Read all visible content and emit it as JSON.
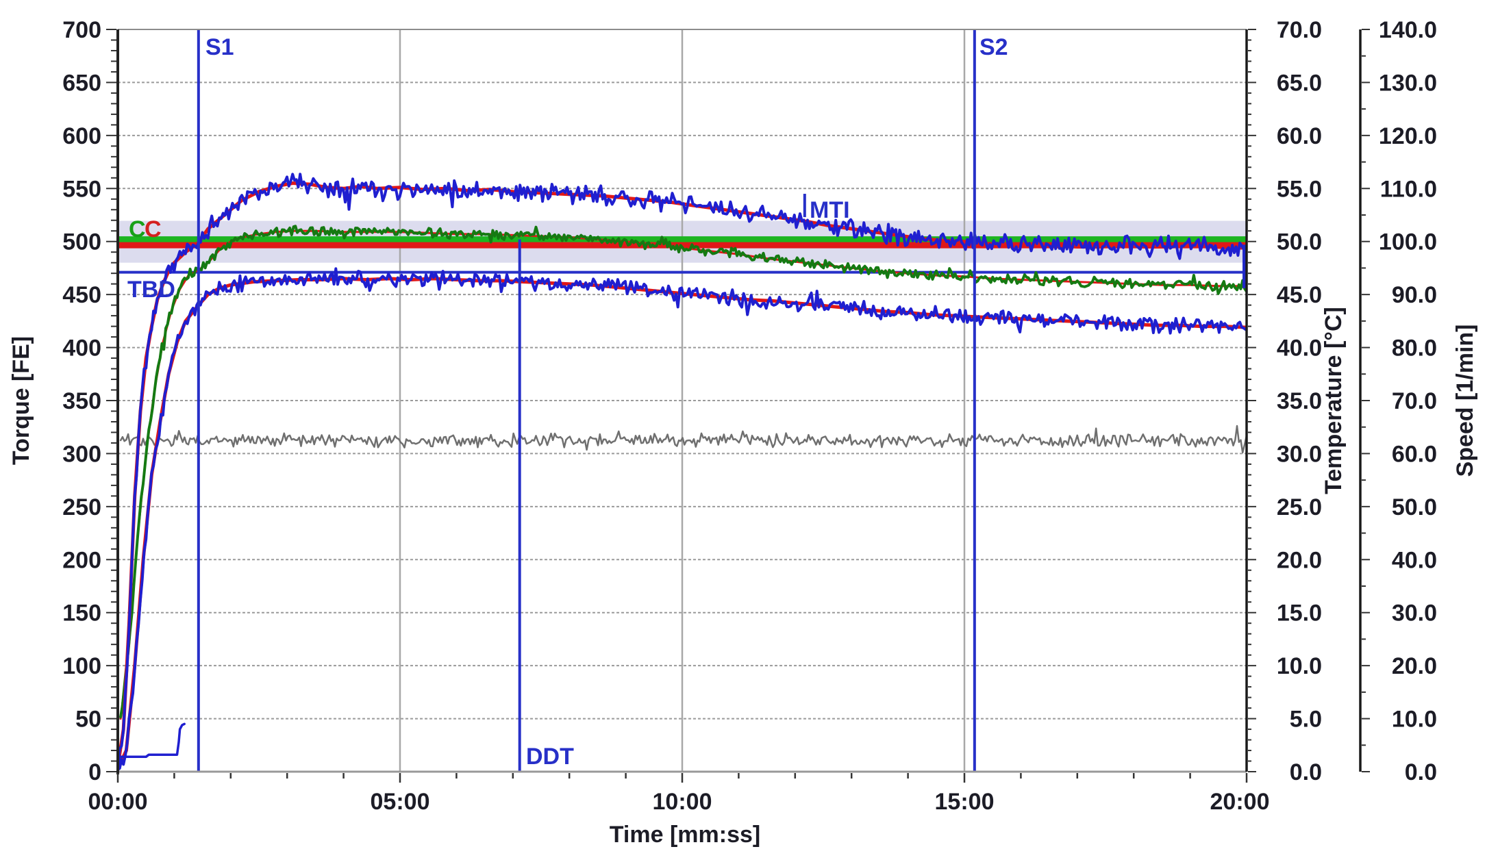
{
  "figure": {
    "background": "#ffffff"
  },
  "chart_data": {
    "type": "line",
    "title": "",
    "grid": "on",
    "x_axis": {
      "label": "Time [mm:ss]",
      "min_label": "00:00",
      "max_label": "20:00",
      "tick_labels": [
        "00:00",
        "05:00",
        "10:00",
        "15:00",
        "20:00"
      ],
      "minor_tick_every_minutes": 1
    },
    "y_axes": [
      {
        "key": "torque",
        "label": "Torque [FE]",
        "side": "left",
        "min": 0,
        "max": 700,
        "step": 50,
        "tick_labels": [
          "0",
          "50",
          "100",
          "150",
          "200",
          "250",
          "300",
          "350",
          "400",
          "450",
          "500",
          "550",
          "600",
          "650",
          "700"
        ]
      },
      {
        "key": "temperature",
        "label": "Temperature [°C]",
        "side": "right",
        "min": 0,
        "max": 70,
        "step": 5,
        "tick_labels": [
          "0.0",
          "5.0",
          "10.0",
          "15.0",
          "20.0",
          "25.0",
          "30.0",
          "35.0",
          "40.0",
          "45.0",
          "50.0",
          "55.0",
          "60.0",
          "65.0",
          "70.0"
        ]
      },
      {
        "key": "speed",
        "label": "Speed [1/min]",
        "side": "right",
        "min": 0,
        "max": 140,
        "step": 10,
        "tick_labels": [
          "0.0",
          "10.0",
          "20.0",
          "30.0",
          "40.0",
          "50.0",
          "60.0",
          "70.0",
          "80.0",
          "90.0",
          "100.0",
          "110.0",
          "120.0",
          "130.0",
          "140.0"
        ]
      }
    ],
    "tolerance_band": {
      "name": "set-point-tolerance-band",
      "from_torque": 480,
      "to_torque": 519.5,
      "color": "#dcdcee"
    },
    "reference_lines": [
      {
        "name": "set-line-green",
        "label": "C",
        "value_torque": 502,
        "color": "#1db521",
        "width": 9
      },
      {
        "name": "set-line-red",
        "label": "C",
        "value_torque": 496.5,
        "color": "#e01818",
        "width": 9
      },
      {
        "name": "TBD-line",
        "label": "TBD",
        "value_torque": 471,
        "color": "#2730c8",
        "width": 4
      }
    ],
    "markers": [
      {
        "name": "S1",
        "label": "S1",
        "time": "01:26",
        "t_min": 1.43,
        "type": "vline-full",
        "color": "#2730c8"
      },
      {
        "name": "S2",
        "label": "S2",
        "time": "15:11",
        "t_min": 15.18,
        "type": "vline-full",
        "color": "#2730c8"
      },
      {
        "name": "DDT",
        "label": "DDT",
        "time": "07:07",
        "t_min": 7.12,
        "type": "vline-partial",
        "v_from": 0,
        "v_to": 502,
        "color": "#2730c8"
      },
      {
        "name": "MTI",
        "label": "MTI",
        "time": "12:10",
        "t_min": 12.17,
        "type": "tick",
        "v_from": 523,
        "v_to": 545,
        "color": "#2730c8"
      },
      {
        "name": "end-of-test",
        "label": "",
        "time": "20:00",
        "t_min": 19.97,
        "type": "bar",
        "v_from": 456,
        "v_to": 497,
        "width": 7,
        "color": "#2028c8"
      }
    ],
    "series": [
      {
        "name": "speed",
        "unit": "1/min",
        "axis": "speed",
        "color": "#6f6f6f",
        "width": 2.5,
        "noise": 0.85,
        "seed": 44,
        "points": [
          [
            0.05,
            62.5
          ],
          [
            20,
            62.5
          ]
        ]
      },
      {
        "name": "temperature-mean",
        "unit": "°C",
        "axis": "temperature",
        "color": "#e01818",
        "width": 3,
        "noise": 0,
        "points_ref": "temperature"
      },
      {
        "name": "temperature",
        "unit": "°C",
        "axis": "temperature",
        "color": "#157a12",
        "width": 4,
        "noise": 0.32,
        "seed": 33,
        "points": [
          [
            0.05,
            5
          ],
          [
            0.2,
            12
          ],
          [
            0.35,
            22
          ],
          [
            0.5,
            30
          ],
          [
            0.65,
            36
          ],
          [
            0.8,
            40.5
          ],
          [
            0.95,
            43.5
          ],
          [
            1.1,
            45.5
          ],
          [
            1.25,
            46.8
          ],
          [
            1.43,
            47.3
          ],
          [
            1.6,
            48
          ],
          [
            1.8,
            49.2
          ],
          [
            2,
            50
          ],
          [
            2.2,
            50.4
          ],
          [
            2.5,
            50.7
          ],
          [
            2.8,
            50.9
          ],
          [
            3.1,
            51
          ],
          [
            3.5,
            51
          ],
          [
            4,
            50.9
          ],
          [
            4.5,
            50.9
          ],
          [
            5,
            50.9
          ],
          [
            5.5,
            50.8
          ],
          [
            6,
            50.7
          ],
          [
            6.5,
            50.7
          ],
          [
            7,
            50.6
          ],
          [
            7.5,
            50.5
          ],
          [
            8,
            50.4
          ],
          [
            8.5,
            50.2
          ],
          [
            9,
            50
          ],
          [
            9.5,
            49.7
          ],
          [
            10,
            49.4
          ],
          [
            10.5,
            49.1
          ],
          [
            11,
            48.8
          ],
          [
            11.5,
            48.4
          ],
          [
            12,
            48.1
          ],
          [
            12.5,
            47.8
          ],
          [
            13,
            47.5
          ],
          [
            13.5,
            47.2
          ],
          [
            14,
            47
          ],
          [
            14.5,
            46.8
          ],
          [
            15,
            46.7
          ],
          [
            15.5,
            46.5
          ],
          [
            16,
            46.4
          ],
          [
            16.5,
            46.3
          ],
          [
            17,
            46.2
          ],
          [
            17.5,
            46.1
          ],
          [
            18,
            46
          ],
          [
            18.5,
            45.9
          ],
          [
            19,
            45.9
          ],
          [
            19.5,
            45.8
          ],
          [
            20,
            45.8
          ]
        ]
      },
      {
        "name": "torque-1-mean",
        "unit": "FE",
        "axis": "torque",
        "color": "#e01818",
        "width": 5,
        "noise": 0,
        "points_ref": "torque-1"
      },
      {
        "name": "torque-2-mean",
        "unit": "FE",
        "axis": "torque",
        "color": "#e01818",
        "width": 5,
        "noise": 0,
        "points_ref": "torque-2"
      },
      {
        "name": "torque-1",
        "unit": "FE",
        "axis": "torque",
        "color": "#1f1fd0",
        "width": 4,
        "noise": 6,
        "seed": 11,
        "points": [
          [
            0,
            5
          ],
          [
            0.1,
            40
          ],
          [
            0.2,
            140
          ],
          [
            0.3,
            260
          ],
          [
            0.4,
            340
          ],
          [
            0.5,
            390
          ],
          [
            0.6,
            420
          ],
          [
            0.7,
            445
          ],
          [
            0.8,
            460
          ],
          [
            0.9,
            472
          ],
          [
            1,
            480
          ],
          [
            1.2,
            490
          ],
          [
            1.43,
            499
          ],
          [
            1.6,
            512
          ],
          [
            1.8,
            521
          ],
          [
            2,
            530
          ],
          [
            2.2,
            539
          ],
          [
            2.5,
            547
          ],
          [
            2.8,
            552
          ],
          [
            3.1,
            555
          ],
          [
            3.4,
            554
          ],
          [
            3.7,
            551
          ],
          [
            4,
            550
          ],
          [
            4.3,
            552
          ],
          [
            4.6,
            550
          ],
          [
            5,
            551
          ],
          [
            5.4,
            549
          ],
          [
            5.8,
            550
          ],
          [
            6.2,
            548
          ],
          [
            6.6,
            549
          ],
          [
            7,
            547
          ],
          [
            7.4,
            546
          ],
          [
            7.8,
            545
          ],
          [
            8.2,
            544
          ],
          [
            8.6,
            543
          ],
          [
            9,
            541
          ],
          [
            9.4,
            539
          ],
          [
            9.8,
            537
          ],
          [
            10.2,
            534
          ],
          [
            10.6,
            531
          ],
          [
            11,
            528
          ],
          [
            11.4,
            525
          ],
          [
            11.8,
            522
          ],
          [
            12.2,
            519
          ],
          [
            12.6,
            515
          ],
          [
            13,
            512
          ],
          [
            13.4,
            509
          ],
          [
            13.8,
            506
          ],
          [
            14.2,
            503
          ],
          [
            14.6,
            501
          ],
          [
            15,
            500
          ],
          [
            15.4,
            498
          ],
          [
            15.8,
            497
          ],
          [
            16.2,
            496
          ],
          [
            16.6,
            496
          ],
          [
            17,
            495
          ],
          [
            17.4,
            495
          ],
          [
            17.8,
            496
          ],
          [
            18.2,
            495
          ],
          [
            18.6,
            495
          ],
          [
            19,
            496
          ],
          [
            19.4,
            495
          ],
          [
            19.8,
            494
          ],
          [
            20,
            494
          ]
        ]
      },
      {
        "name": "torque-2",
        "unit": "FE",
        "axis": "torque",
        "color": "#1f1fd0",
        "width": 4,
        "noise": 5,
        "seed": 22,
        "points": [
          [
            0,
            3
          ],
          [
            0.15,
            20
          ],
          [
            0.3,
            100
          ],
          [
            0.45,
            200
          ],
          [
            0.6,
            280
          ],
          [
            0.75,
            330
          ],
          [
            0.9,
            375
          ],
          [
            1.05,
            405
          ],
          [
            1.2,
            425
          ],
          [
            1.43,
            440
          ],
          [
            1.6,
            450
          ],
          [
            1.8,
            456
          ],
          [
            2,
            459
          ],
          [
            2.4,
            462
          ],
          [
            2.8,
            463
          ],
          [
            3.2,
            464
          ],
          [
            3.6,
            464
          ],
          [
            4,
            465
          ],
          [
            4.4,
            464
          ],
          [
            4.8,
            465
          ],
          [
            5.2,
            464
          ],
          [
            5.6,
            465
          ],
          [
            6,
            464
          ],
          [
            6.4,
            463
          ],
          [
            6.8,
            463
          ],
          [
            7.2,
            462
          ],
          [
            7.6,
            461
          ],
          [
            8,
            460
          ],
          [
            8.4,
            459
          ],
          [
            8.8,
            457
          ],
          [
            9.2,
            455
          ],
          [
            9.6,
            453
          ],
          [
            10,
            451
          ],
          [
            10.4,
            449
          ],
          [
            10.8,
            447
          ],
          [
            11.2,
            445
          ],
          [
            11.6,
            444
          ],
          [
            12,
            442
          ],
          [
            12.4,
            440
          ],
          [
            12.8,
            438
          ],
          [
            13.2,
            436
          ],
          [
            13.6,
            434
          ],
          [
            14,
            433
          ],
          [
            14.4,
            431
          ],
          [
            14.8,
            430
          ],
          [
            15.2,
            429
          ],
          [
            15.6,
            428
          ],
          [
            16,
            427
          ],
          [
            16.4,
            426
          ],
          [
            16.8,
            425
          ],
          [
            17.2,
            424
          ],
          [
            17.6,
            423
          ],
          [
            18,
            422
          ],
          [
            18.4,
            421
          ],
          [
            18.8,
            421
          ],
          [
            19.2,
            420
          ],
          [
            19.6,
            420
          ],
          [
            20,
            419
          ]
        ]
      },
      {
        "name": "start-step",
        "unit": "FE",
        "axis": "torque",
        "color": "#1f1fd0",
        "width": 3.5,
        "noise": 0,
        "points": [
          [
            0,
            2
          ],
          [
            0.03,
            14
          ],
          [
            0.5,
            14
          ],
          [
            0.55,
            16
          ],
          [
            1.05,
            16
          ],
          [
            1.08,
            28
          ],
          [
            1.1,
            40
          ],
          [
            1.14,
            44
          ],
          [
            1.18,
            45
          ]
        ]
      }
    ]
  }
}
